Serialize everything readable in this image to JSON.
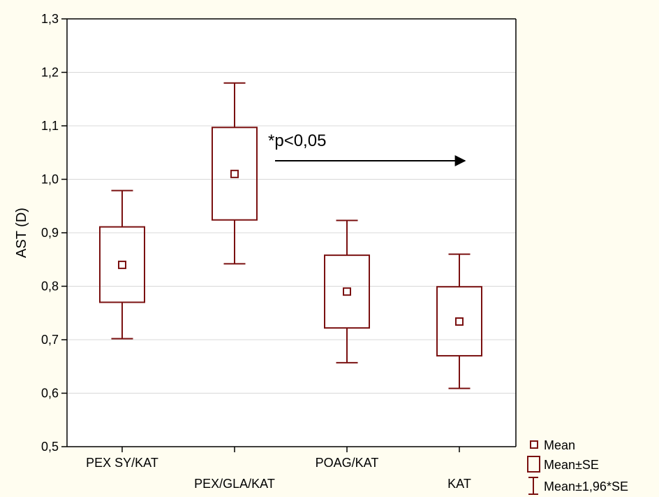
{
  "chart_data": {
    "type": "boxplot",
    "ylabel": "AST (D)",
    "ylim": [
      0.5,
      1.3
    ],
    "yticks": [
      {
        "value": 0.5,
        "label": "0,5"
      },
      {
        "value": 0.6,
        "label": "0,6"
      },
      {
        "value": 0.7,
        "label": "0,7"
      },
      {
        "value": 0.8,
        "label": "0,8"
      },
      {
        "value": 0.9,
        "label": "0,9"
      },
      {
        "value": 1.0,
        "label": "1,0"
      },
      {
        "value": 1.1,
        "label": "1,1"
      },
      {
        "value": 1.2,
        "label": "1,2"
      },
      {
        "value": 1.3,
        "label": "1,3"
      }
    ],
    "categories": [
      "PEX SY/KAT",
      "PEX/GLA/KAT",
      "POAG/KAT",
      "KAT"
    ],
    "groups": [
      {
        "category": "PEX SY/KAT",
        "mean": 0.84,
        "se_low": 0.77,
        "se_high": 0.911,
        "ci_low": 0.702,
        "ci_high": 0.979
      },
      {
        "category": "PEX/GLA/KAT",
        "mean": 1.01,
        "se_low": 0.924,
        "se_high": 1.097,
        "ci_low": 0.842,
        "ci_high": 1.18
      },
      {
        "category": "POAG/KAT",
        "mean": 0.79,
        "se_low": 0.722,
        "se_high": 0.858,
        "ci_low": 0.657,
        "ci_high": 0.923
      },
      {
        "category": "KAT",
        "mean": 0.734,
        "se_low": 0.67,
        "se_high": 0.799,
        "ci_low": 0.609,
        "ci_high": 0.86
      }
    ],
    "annotation": {
      "text": "*p<0,05",
      "from_category": "PEX/GLA/KAT",
      "to_category": "KAT"
    },
    "legend": {
      "placement": "bottom-right",
      "items": [
        {
          "name": "Mean",
          "symbol": "square"
        },
        {
          "name": "Mean±SE",
          "symbol": "box"
        },
        {
          "name": "Mean±1,96*SE",
          "symbol": "whisker"
        }
      ]
    },
    "grid": true,
    "color": "#7a1010"
  }
}
